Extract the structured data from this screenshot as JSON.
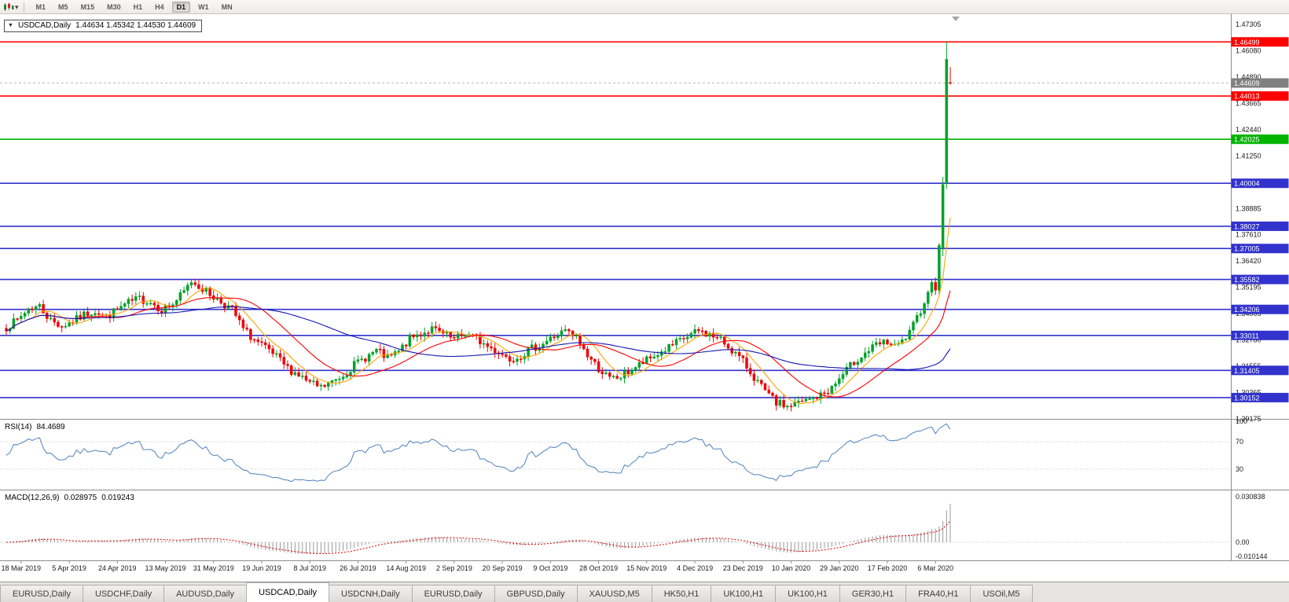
{
  "toolbar": {
    "timeframes": [
      "M1",
      "M5",
      "M15",
      "M30",
      "H1",
      "H4",
      "D1",
      "W1",
      "MN"
    ],
    "active_timeframe": "D1",
    "icons": {
      "charts_menu": "charts-menu-icon",
      "caret": "caret-down-icon"
    }
  },
  "chart": {
    "title_marker": "▼",
    "symbol_title": "USDCAD,Daily",
    "ohlc_text": "1.44634 1.45342 1.44530 1.44609"
  },
  "indicators": {
    "rsi": {
      "name": "RSI(14)",
      "value": "84.4689"
    },
    "macd": {
      "name": "MACD(12,26,9)",
      "value_main": "0.028975",
      "value_signal": "0.019243"
    }
  },
  "chart_data": {
    "type": "candlestick",
    "symbol": "USDCAD",
    "timeframe": "Daily",
    "current_candle": {
      "open": 1.44634,
      "high": 1.45342,
      "low": 1.4453,
      "close": 1.44609
    },
    "candle_count": 256,
    "candle_colors": {
      "up": "#00A228",
      "down": "#F00000"
    },
    "price_axis": {
      "max": 1.47305,
      "min": 1.29175,
      "tick_labels": [
        "1.47305",
        "1.46080",
        "1.44890",
        "1.43665",
        "1.42440",
        "1.41250",
        "1.40030",
        "1.38885",
        "1.37610",
        "1.36420",
        "1.35195",
        "1.34005",
        "1.32780",
        "1.31555",
        "1.30365",
        "1.29175"
      ]
    },
    "time_axis": {
      "labels": [
        "18 Mar 2019",
        "5 Apr 2019",
        "24 Apr 2019",
        "13 May 2019",
        "31 May 2019",
        "19 Jun 2019",
        "8 Jul 2019",
        "26 Jul 2019",
        "14 Aug 2019",
        "2 Sep 2019",
        "20 Sep 2019",
        "9 Oct 2019",
        "28 Oct 2019",
        "15 Nov 2019",
        "4 Dec 2019",
        "23 Dec 2019",
        "10 Jan 2020",
        "29 Jan 2020",
        "17 Feb 2020",
        "6 Mar 2020"
      ],
      "first_tick_index": 4,
      "tick_step": 13
    },
    "price_waypoints": [
      [
        0,
        1.334
      ],
      [
        3,
        1.337
      ],
      [
        6,
        1.3425
      ],
      [
        9,
        1.3435
      ],
      [
        12,
        1.337
      ],
      [
        15,
        1.3345
      ],
      [
        18,
        1.3365
      ],
      [
        21,
        1.3395
      ],
      [
        24,
        1.3415
      ],
      [
        27,
        1.3385
      ],
      [
        30,
        1.342
      ],
      [
        33,
        1.345
      ],
      [
        36,
        1.347
      ],
      [
        39,
        1.3455
      ],
      [
        42,
        1.342
      ],
      [
        45,
        1.3445
      ],
      [
        48,
        1.35
      ],
      [
        50,
        1.355
      ],
      [
        52,
        1.353
      ],
      [
        55,
        1.349
      ],
      [
        58,
        1.3455
      ],
      [
        61,
        1.342
      ],
      [
        64,
        1.333
      ],
      [
        67,
        1.328
      ],
      [
        70,
        1.324
      ],
      [
        73,
        1.32
      ],
      [
        76,
        1.315
      ],
      [
        79,
        1.312
      ],
      [
        82,
        1.308
      ],
      [
        85,
        1.306
      ],
      [
        88,
        1.3085
      ],
      [
        91,
        1.312
      ],
      [
        94,
        1.3165
      ],
      [
        97,
        1.32
      ],
      [
        100,
        1.323
      ],
      [
        103,
        1.3195
      ],
      [
        106,
        1.3225
      ],
      [
        109,
        1.3285
      ],
      [
        112,
        1.331
      ],
      [
        115,
        1.333
      ],
      [
        118,
        1.3305
      ],
      [
        121,
        1.328
      ],
      [
        124,
        1.331
      ],
      [
        127,
        1.3285
      ],
      [
        130,
        1.325
      ],
      [
        133,
        1.3225
      ],
      [
        136,
        1.3195
      ],
      [
        139,
        1.321
      ],
      [
        142,
        1.324
      ],
      [
        145,
        1.3265
      ],
      [
        148,
        1.3295
      ],
      [
        151,
        1.332
      ],
      [
        154,
        1.329
      ],
      [
        157,
        1.321
      ],
      [
        160,
        1.315
      ],
      [
        163,
        1.31
      ],
      [
        166,
        1.311
      ],
      [
        169,
        1.3145
      ],
      [
        172,
        1.3175
      ],
      [
        175,
        1.3205
      ],
      [
        178,
        1.3235
      ],
      [
        181,
        1.3265
      ],
      [
        184,
        1.3295
      ],
      [
        187,
        1.332
      ],
      [
        190,
        1.3305
      ],
      [
        193,
        1.328
      ],
      [
        196,
        1.3235
      ],
      [
        199,
        1.318
      ],
      [
        202,
        1.311
      ],
      [
        205,
        1.304
      ],
      [
        208,
        1.299
      ],
      [
        211,
        1.2975
      ],
      [
        214,
        1.299
      ],
      [
        217,
        1.3005
      ],
      [
        220,
        1.3025
      ],
      [
        223,
        1.306
      ],
      [
        226,
        1.312
      ],
      [
        229,
        1.318
      ],
      [
        232,
        1.322
      ],
      [
        235,
        1.3255
      ],
      [
        238,
        1.327
      ],
      [
        240,
        1.3245
      ],
      [
        242,
        1.327
      ],
      [
        244,
        1.331
      ],
      [
        246,
        1.338
      ],
      [
        248,
        1.346
      ],
      [
        249,
        1.349
      ],
      [
        250,
        1.356
      ],
      [
        251,
        1.3525
      ],
      [
        252,
        1.37
      ]
    ],
    "final_candles": [
      {
        "i": 253,
        "o": 1.3705,
        "h": 1.403,
        "l": 1.3665,
        "c": 1.3995
      },
      {
        "i": 254,
        "o": 1.4,
        "h": 1.46499,
        "l": 1.3975,
        "c": 1.457
      },
      {
        "i": 255,
        "o": 1.44634,
        "h": 1.45342,
        "l": 1.4453,
        "c": 1.44609
      }
    ],
    "horizontal_lines": [
      {
        "price": 1.46499,
        "label": "1.46499",
        "color": "#FF0000"
      },
      {
        "price": 1.44013,
        "label": "1.44013",
        "color": "#FF0000"
      },
      {
        "price": 1.42025,
        "label": "1.42025",
        "color": "#00B400"
      },
      {
        "price": 1.40004,
        "label": "1.40004",
        "color": "#3232CD"
      },
      {
        "price": 1.38027,
        "label": "1.38027",
        "color": "#3232CD"
      },
      {
        "price": 1.37005,
        "label": "1.37005",
        "color": "#3232CD"
      },
      {
        "price": 1.35582,
        "label": "1.35582",
        "color": "#3232CD"
      },
      {
        "price": 1.34206,
        "label": "1.34206",
        "color": "#3232CD"
      },
      {
        "price": 1.33011,
        "label": "1.33011",
        "color": "#3232CD"
      },
      {
        "price": 1.31405,
        "label": "1.31405",
        "color": "#3232CD"
      },
      {
        "price": 1.30152,
        "label": "1.30152",
        "color": "#3232CD"
      }
    ],
    "current_price_line": {
      "price": 1.44609,
      "label": "1.44609",
      "color": "#808080"
    },
    "moving_averages": [
      {
        "period": 8,
        "color": "#FFA500"
      },
      {
        "period": 21,
        "color": "#FF0000"
      },
      {
        "period": 55,
        "color": "#1515B4"
      }
    ],
    "rsi_panel": {
      "name": "RSI(14)",
      "period": 14,
      "current": 84.4689,
      "levels": [
        100,
        70,
        30
      ],
      "line_color": "#4F81BD",
      "range": [
        0,
        100
      ]
    },
    "macd_panel": {
      "name": "MACD(12,26,9)",
      "fast": 12,
      "slow": 26,
      "signal": 9,
      "current_macd": 0.028975,
      "current_signal": 0.019243,
      "axis_labels": [
        "0.030838",
        "0.00",
        "-0.010144"
      ],
      "max": 0.030838,
      "min": -0.010144,
      "histogram_color": "#9A9A9A",
      "signal_color": "#E00000"
    }
  },
  "tabs": {
    "labels": [
      "EURUSD,Daily",
      "USDCHF,Daily",
      "AUDUSD,Daily",
      "USDCAD,Daily",
      "USDCNH,Daily",
      "EURUSD,Daily",
      "GBPUSD,Daily",
      "XAUUSD,M5",
      "HK50,H1",
      "UK100,H1",
      "UK100,H1",
      "GER30,H1",
      "FRA40,H1",
      "USOil,M5"
    ],
    "active_index": 3
  }
}
